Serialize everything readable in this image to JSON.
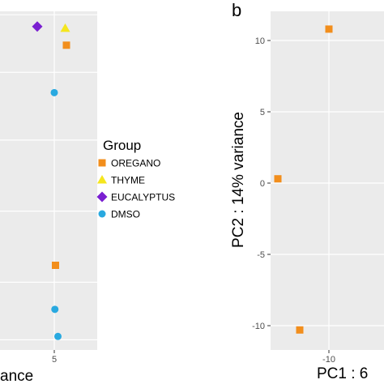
{
  "colors": {
    "OREGANO": "#F28E1C",
    "THYME": "#F5E61E",
    "EUCALYPTUS": "#7A1FD1",
    "DMSO": "#29A9E0",
    "panel_bg": "#EBEBEB",
    "grid": "#FFFFFF"
  },
  "legend": {
    "title": "Group",
    "items": [
      {
        "label": "OREGANO",
        "shape": "square",
        "color": "#F28E1C"
      },
      {
        "label": "THYME",
        "shape": "triangle",
        "color": "#F5E61E"
      },
      {
        "label": "EUCALYPTUS",
        "shape": "diamond",
        "color": "#7A1FD1"
      },
      {
        "label": "DMSO",
        "shape": "circle",
        "color": "#29A9E0"
      }
    ]
  },
  "chart_data": [
    {
      "type": "scatter",
      "xlabel": "ance",
      "x_ticks": [
        5
      ],
      "x_tick_labels": [
        "5"
      ],
      "grid": true,
      "series": [
        {
          "name": "OREGANO",
          "shape": "square",
          "points": [
            [
              6.0,
              0.9
            ],
            [
              5.1,
              0.25
            ]
          ]
        },
        {
          "name": "THYME",
          "shape": "triangle",
          "points": [
            [
              5.9,
              0.95
            ]
          ]
        },
        {
          "name": "EUCALYPTUS",
          "shape": "diamond",
          "points": [
            [
              3.6,
              0.955
            ]
          ]
        },
        {
          "name": "DMSO",
          "shape": "circle",
          "points": [
            [
              5.0,
              0.76
            ],
            [
              5.05,
              0.12
            ],
            [
              5.3,
              0.04
            ]
          ]
        }
      ]
    },
    {
      "type": "scatter",
      "panel_label": "b",
      "xlabel": "PC1 : 6",
      "ylabel": "PC2 : 14% variance",
      "x_ticks": [
        -10
      ],
      "x_tick_labels": [
        "-10"
      ],
      "y_ticks": [
        10,
        5,
        0,
        -5,
        -10
      ],
      "y_tick_labels": [
        "10",
        "5",
        "0",
        "-5",
        "-10"
      ],
      "grid": true,
      "series": [
        {
          "name": "OREGANO",
          "shape": "square",
          "points": [
            [
              -10.0,
              10.8
            ],
            [
              -12.8,
              0.3
            ],
            [
              -11.6,
              -10.3
            ]
          ]
        }
      ]
    }
  ]
}
